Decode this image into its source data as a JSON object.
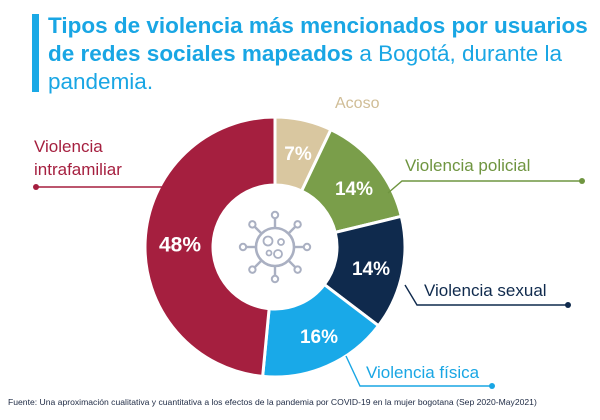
{
  "title": {
    "bold_part": "Tipos de violencia más mencionados por usuarios de redes sociales mapeados",
    "regular_part": " a Bogotá, durante la pandemia."
  },
  "source_note": "Fuente: Una aproximación cualitativa y cuantitativa a los efectos de la pandemia por COVID-19 en la mujer bogotana (Sep 2020-May2021)",
  "center_icon": "virus-icon",
  "chart_data": {
    "type": "pie",
    "variant": "donut",
    "title": "Tipos de violencia más mencionados por usuarios de redes sociales mapeados a Bogotá, durante la pandemia.",
    "unit": "%",
    "slices": [
      {
        "label": "Acoso",
        "value": 7,
        "display": "7%",
        "color": "#d9c7a0",
        "label_color": "#d0bd96",
        "text_color": "#ffffff"
      },
      {
        "label": "Violencia policial",
        "value": 14,
        "display": "14%",
        "color": "#7a9e4a",
        "label_color": "#6f9540",
        "text_color": "#ffffff"
      },
      {
        "label": "Violencia sexual",
        "value": 14,
        "display": "14%",
        "color": "#0f2a4d",
        "label_color": "#0f2a4d",
        "text_color": "#ffffff"
      },
      {
        "label": "Violencia física",
        "value": 16,
        "display": "16%",
        "color": "#19a9e8",
        "label_color": "#19a6e4",
        "text_color": "#ffffff"
      },
      {
        "label": "Violencia intrafamiliar",
        "value": 48,
        "display": "48%",
        "color": "#a51f3f",
        "label_color": "#a51f3f",
        "text_color": "#ffffff"
      }
    ]
  }
}
